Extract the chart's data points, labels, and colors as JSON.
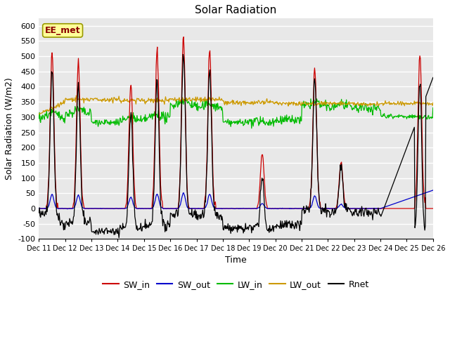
{
  "title": "Solar Radiation",
  "xlabel": "Time",
  "ylabel": "Solar Radiation (W/m2)",
  "ylim": [
    -100,
    625
  ],
  "yticks": [
    -100,
    -50,
    0,
    50,
    100,
    150,
    200,
    250,
    300,
    350,
    400,
    450,
    500,
    550,
    600
  ],
  "xlim": [
    0,
    15
  ],
  "xtick_labels": [
    "Dec 11",
    "Dec 12",
    "Dec 13",
    "Dec 14",
    "Dec 15",
    "Dec 16",
    "Dec 17",
    "Dec 18",
    "Dec 19",
    "Dec 20",
    "Dec 21",
    "Dec 22",
    "Dec 23",
    "Dec 24",
    "Dec 25",
    "Dec 26"
  ],
  "bg_color": "#e8e8e8",
  "grid_color": "white",
  "annotation_text": "EE_met",
  "annotation_text_color": "#8b0000",
  "annotation_bg": "#ffff99",
  "annotation_edge": "#999900",
  "legend_colors": [
    "#cc0000",
    "#0000cc",
    "#00bb00",
    "#cc9900",
    "#000000"
  ],
  "legend_labels": [
    "SW_in",
    "SW_out",
    "LW_in",
    "LW_out",
    "Rnet"
  ]
}
